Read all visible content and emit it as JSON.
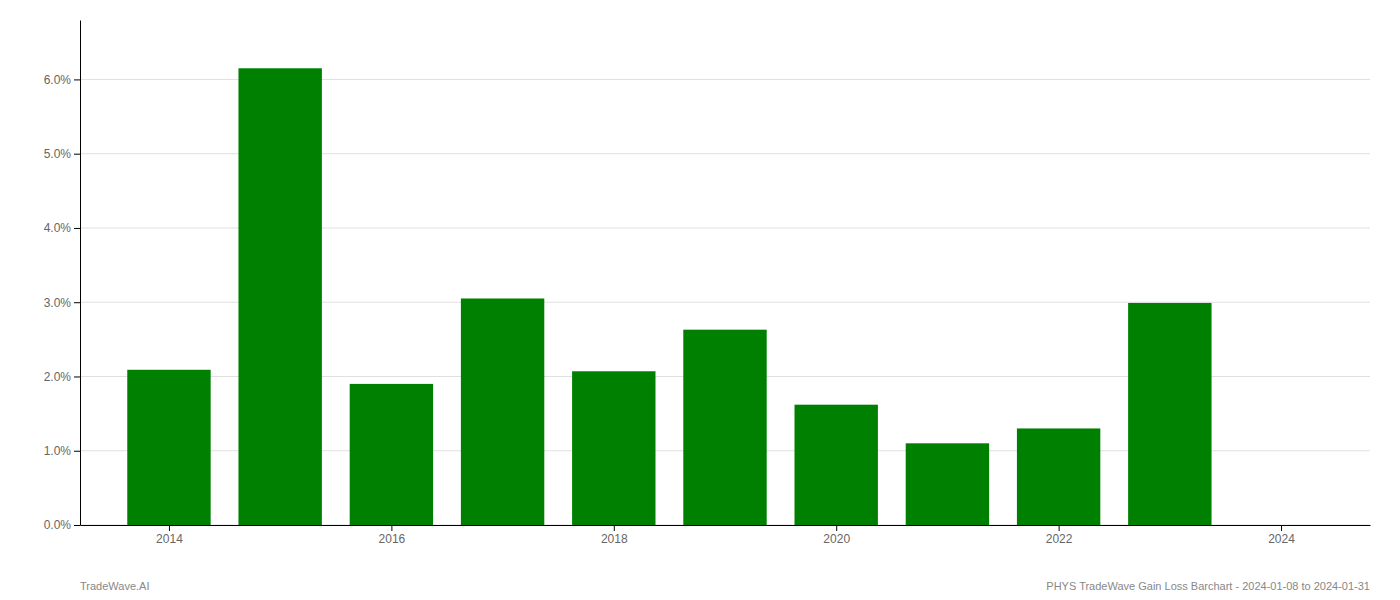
{
  "chart_data": {
    "type": "bar",
    "x": [
      2014,
      2015,
      2016,
      2017,
      2018,
      2019,
      2020,
      2021,
      2022,
      2023
    ],
    "values": [
      0.0209,
      0.0615,
      0.019,
      0.0305,
      0.0207,
      0.0263,
      0.0162,
      0.011,
      0.013,
      0.0299
    ],
    "color": "#008000",
    "xlim": [
      2013.2,
      2024.8
    ],
    "xticks": [
      2014,
      2016,
      2018,
      2020,
      2022,
      2024
    ],
    "ylim": [
      0.0,
      0.068
    ],
    "yticks": [
      {
        "value": 0.0,
        "label": "0.0%"
      },
      {
        "value": 0.01,
        "label": "1.0%"
      },
      {
        "value": 0.02,
        "label": "2.0%"
      },
      {
        "value": 0.03,
        "label": "3.0%"
      },
      {
        "value": 0.04,
        "label": "4.0%"
      },
      {
        "value": 0.05,
        "label": "5.0%"
      },
      {
        "value": 0.06,
        "label": "6.0%"
      }
    ],
    "grid": true,
    "annotations": [
      "TradeWave.AI",
      "PHYS TradeWave Gain Loss Barchart - 2024-01-08 to 2024-01-31"
    ]
  }
}
